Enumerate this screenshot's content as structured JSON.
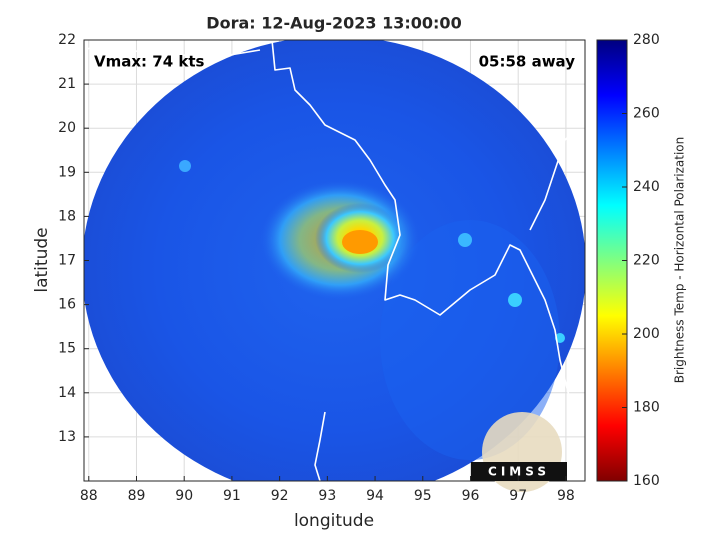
{
  "chart_data": {
    "type": "map",
    "title": "Dora: 12-Aug-2023 13:00:00",
    "xlabel": "longitude",
    "ylabel": "latitude",
    "annotations": [
      "Vmax: 74 kts",
      "05:58 away"
    ],
    "logo": "CIMSS",
    "xlim": [
      87.9,
      98.4
    ],
    "xticks": [
      88,
      89,
      90,
      91,
      92,
      93,
      94,
      95,
      96,
      97,
      98
    ],
    "ylim": [
      12,
      22
    ],
    "yticks": [
      13,
      14,
      15,
      16,
      17,
      18,
      19,
      20,
      21,
      22
    ],
    "grid": true,
    "colorbar": {
      "label": "Brightness Temp - Horizontal Polarization",
      "colormap": "jet",
      "lim": [
        160,
        280
      ],
      "ticks": [
        160,
        180,
        200,
        220,
        240,
        260,
        280
      ]
    }
  }
}
